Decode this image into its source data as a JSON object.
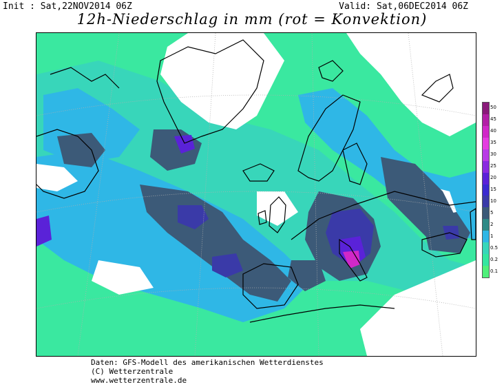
{
  "header": {
    "init": "Init : Sat,22NOV2014 06Z",
    "valid": "Valid: Sat,06DEC2014 06Z",
    "title": "12h-Niederschlag in mm (rot = Konvektion)"
  },
  "legend": {
    "items": [
      {
        "label": "50",
        "color": "#8a1a7a"
      },
      {
        "label": "45",
        "color": "#b21fa6"
      },
      {
        "label": "40",
        "color": "#d028c8"
      },
      {
        "label": "35",
        "color": "#e43ce0"
      },
      {
        "label": "30",
        "color": "#b83ae6"
      },
      {
        "label": "25",
        "color": "#8a2be0"
      },
      {
        "label": "20",
        "color": "#5a22d8"
      },
      {
        "label": "15",
        "color": "#3a2ad0"
      },
      {
        "label": "10",
        "color": "#3a3aa8"
      },
      {
        "label": "5",
        "color": "#3c5a78"
      },
      {
        "label": "2",
        "color": "#2f8a86"
      },
      {
        "label": "1",
        "color": "#2fb7e6"
      },
      {
        "label": "0.5",
        "color": "#38d6ba"
      },
      {
        "label": "0.2",
        "color": "#34e6a0"
      },
      {
        "label": "0.1",
        "color": "#4ef07a"
      }
    ]
  },
  "footer": {
    "line1": "Daten: GFS-Modell des amerikanischen Wetterdienstes",
    "line2": "(C) Wetterzentrale",
    "line3": "www.wetterzentrale.de"
  },
  "colors": {
    "light_green": "#3ae8a0",
    "teal": "#38d6ba",
    "cyan": "#2fb7e6",
    "dark_slate": "#3c5a78",
    "blue": "#3a3aa8",
    "violet": "#5a22d8",
    "magenta": "#d028c8",
    "coast": "#000000",
    "land": "#ffffff"
  }
}
